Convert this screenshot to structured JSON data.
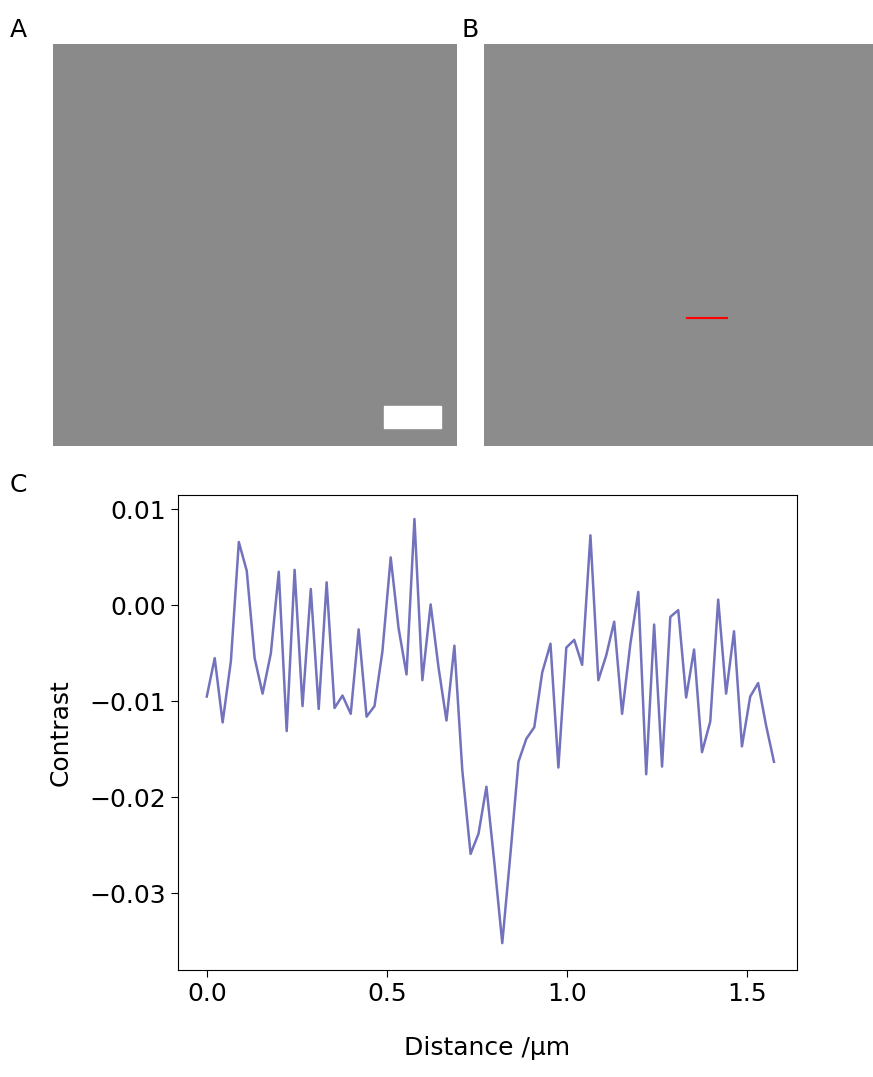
{
  "panel_labels": [
    "A",
    "B",
    "C"
  ],
  "chart_data": {
    "type": "line",
    "x_label": "Distance /µm",
    "y_label": "Contrast",
    "x": [
      0,
      0.022,
      0.044,
      0.067,
      0.089,
      0.111,
      0.133,
      0.155,
      0.178,
      0.2,
      0.222,
      0.244,
      0.266,
      0.289,
      0.311,
      0.333,
      0.355,
      0.377,
      0.4,
      0.422,
      0.444,
      0.466,
      0.488,
      0.511,
      0.533,
      0.555,
      0.577,
      0.599,
      0.622,
      0.644,
      0.666,
      0.688,
      0.71,
      0.733,
      0.755,
      0.777,
      0.799,
      0.821,
      0.844,
      0.866,
      0.888,
      0.91,
      0.932,
      0.955,
      0.977,
      0.999,
      1.021,
      1.043,
      1.066,
      1.088,
      1.11,
      1.132,
      1.154,
      1.177,
      1.199,
      1.221,
      1.243,
      1.265,
      1.288,
      1.31,
      1.332,
      1.354,
      1.376,
      1.399,
      1.421,
      1.443,
      1.465,
      1.487,
      1.51,
      1.532,
      1.554,
      1.576
    ],
    "values": [
      -0.0095,
      -0.0055,
      -0.0122,
      -0.0058,
      0.0066,
      0.0036,
      -0.0055,
      -0.0092,
      -0.005,
      0.0035,
      -0.0131,
      0.0037,
      -0.0105,
      0.0017,
      -0.0108,
      0.0024,
      -0.0107,
      -0.0094,
      -0.0113,
      -0.0025,
      -0.0116,
      -0.0105,
      -0.0048,
      0.005,
      -0.0024,
      -0.0072,
      0.009,
      -0.0078,
      0.0001,
      -0.0065,
      -0.012,
      -0.0042,
      -0.0172,
      -0.0259,
      -0.0238,
      -0.0189,
      -0.0268,
      -0.0352,
      -0.0258,
      -0.0163,
      -0.0139,
      -0.0127,
      -0.007,
      -0.004,
      -0.0169,
      -0.0044,
      -0.0036,
      -0.0062,
      0.0073,
      -0.0078,
      -0.0052,
      -0.0017,
      -0.0113,
      -0.004,
      0.0014,
      -0.0176,
      -0.002,
      -0.0168,
      -0.0012,
      -0.0005,
      -0.0096,
      -0.0046,
      -0.0153,
      -0.0121,
      0.0006,
      -0.0092,
      -0.0027,
      -0.0147,
      -0.0095,
      -0.0081,
      -0.0125,
      -0.0163
    ],
    "color": "#7272bd",
    "xlim": [
      -0.08,
      1.64
    ],
    "xticks": [
      {
        "value": 0,
        "label": "0.0"
      },
      {
        "value": 0.5,
        "label": "0.5"
      },
      {
        "value": 1,
        "label": "1.0"
      },
      {
        "value": 1.5,
        "label": "1.5"
      }
    ],
    "ylim": [
      -0.038,
      0.0115
    ],
    "yticks": [
      0.01,
      {
        "value": 0,
        "label": "0.00"
      },
      {
        "value": -0.01,
        "label": "−0.01"
      },
      {
        "value": -0.02,
        "label": "−0.02"
      },
      {
        "value": -0.03,
        "label": "−0.03"
      }
    ],
    "grid": false
  }
}
